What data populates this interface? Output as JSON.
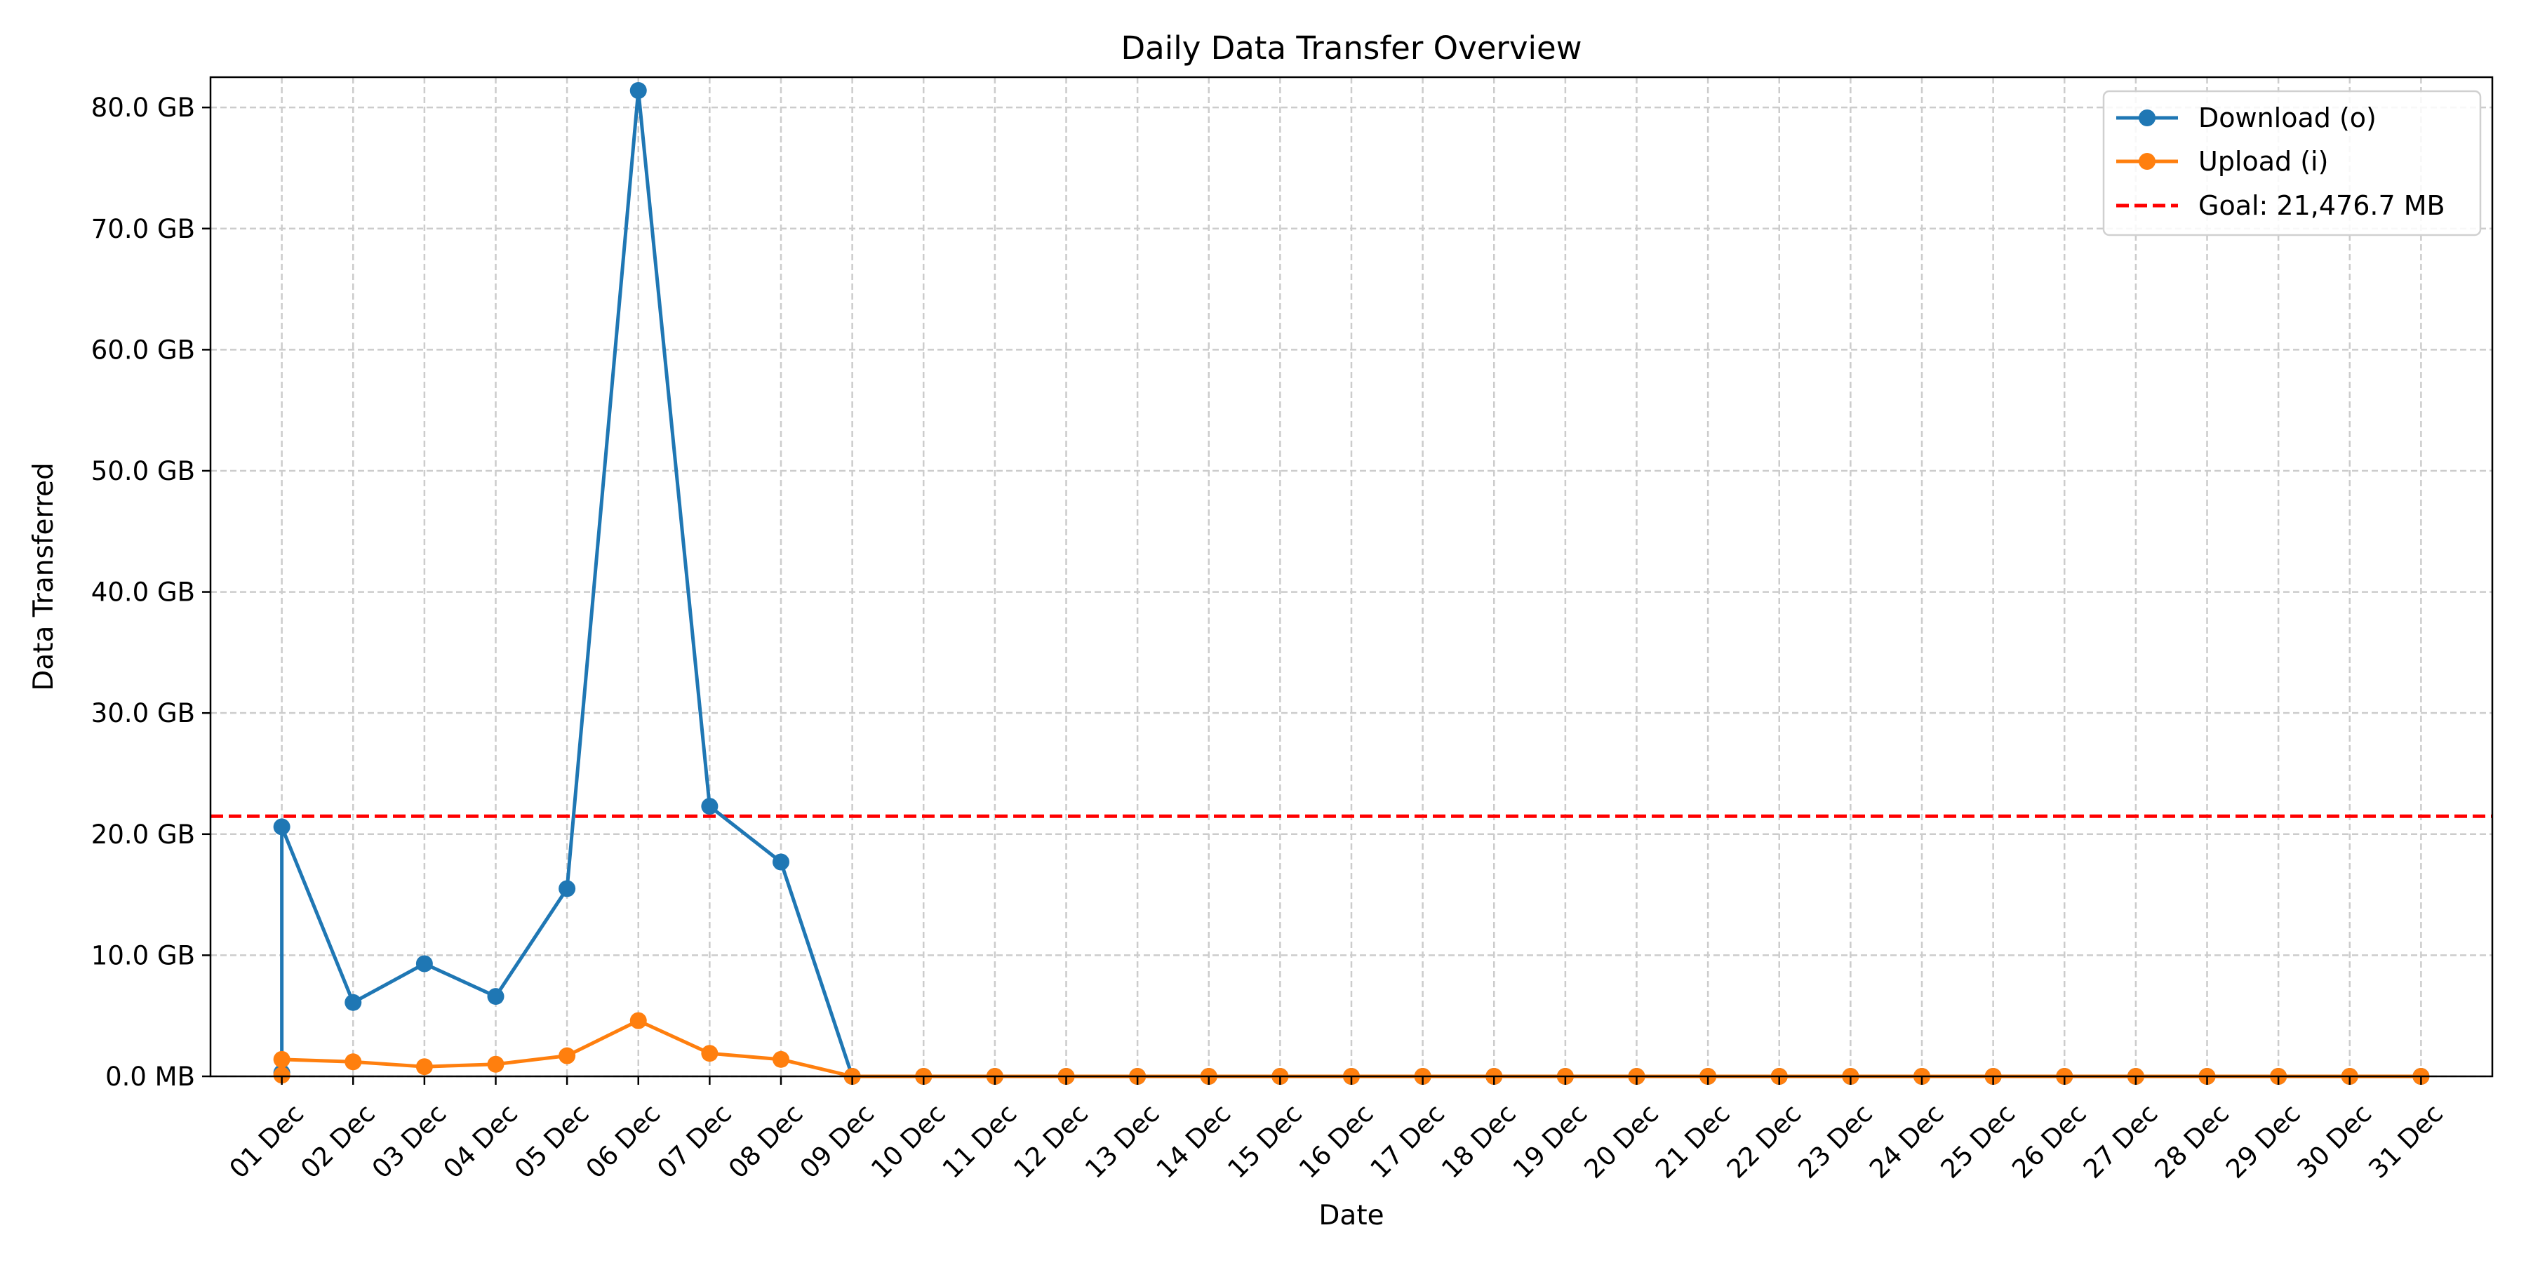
{
  "chart_data": {
    "type": "line",
    "title": "Daily Data Transfer Overview",
    "xlabel": "Date",
    "ylabel": "Data Transferred",
    "x": [
      "01 Dec",
      "02 Dec",
      "03 Dec",
      "04 Dec",
      "05 Dec",
      "06 Dec",
      "07 Dec",
      "08 Dec",
      "09 Dec",
      "10 Dec",
      "11 Dec",
      "12 Dec",
      "13 Dec",
      "14 Dec",
      "15 Dec",
      "16 Dec",
      "17 Dec",
      "18 Dec",
      "19 Dec",
      "20 Dec",
      "21 Dec",
      "22 Dec",
      "23 Dec",
      "24 Dec",
      "25 Dec",
      "26 Dec",
      "27 Dec",
      "28 Dec",
      "29 Dec",
      "30 Dec",
      "31 Dec"
    ],
    "y_unit": "GB",
    "ylim": [
      0,
      82.5
    ],
    "xlim": [
      "30 Nov",
      "01 Jan"
    ],
    "yticks": [
      {
        "value": 0,
        "label": "0.0 MB"
      },
      {
        "value": 10,
        "label": "10.0 GB"
      },
      {
        "value": 20,
        "label": "20.0 GB"
      },
      {
        "value": 30,
        "label": "30.0 GB"
      },
      {
        "value": 40,
        "label": "40.0 GB"
      },
      {
        "value": 50,
        "label": "50.0 GB"
      },
      {
        "value": 60,
        "label": "60.0 GB"
      },
      {
        "value": 70,
        "label": "70.0 GB"
      },
      {
        "value": 80,
        "label": "80.0 GB"
      }
    ],
    "series": [
      {
        "name": "Download (o)",
        "color": "#1f77b4",
        "points": [
          {
            "x": "01 Dec",
            "y": 0.3
          },
          {
            "x": "01 Dec",
            "y": 20.6
          },
          {
            "x": "02 Dec",
            "y": 6.1
          },
          {
            "x": "03 Dec",
            "y": 9.3
          },
          {
            "x": "04 Dec",
            "y": 6.6
          },
          {
            "x": "05 Dec",
            "y": 15.5
          },
          {
            "x": "06 Dec",
            "y": 81.4
          },
          {
            "x": "07 Dec",
            "y": 22.3
          },
          {
            "x": "08 Dec",
            "y": 17.7
          },
          {
            "x": "09 Dec",
            "y": 0
          },
          {
            "x": "10 Dec",
            "y": 0
          },
          {
            "x": "11 Dec",
            "y": 0
          },
          {
            "x": "12 Dec",
            "y": 0
          },
          {
            "x": "13 Dec",
            "y": 0
          },
          {
            "x": "14 Dec",
            "y": 0
          },
          {
            "x": "15 Dec",
            "y": 0
          },
          {
            "x": "16 Dec",
            "y": 0
          },
          {
            "x": "17 Dec",
            "y": 0
          },
          {
            "x": "18 Dec",
            "y": 0
          },
          {
            "x": "19 Dec",
            "y": 0
          },
          {
            "x": "20 Dec",
            "y": 0
          },
          {
            "x": "21 Dec",
            "y": 0
          },
          {
            "x": "22 Dec",
            "y": 0
          },
          {
            "x": "23 Dec",
            "y": 0
          },
          {
            "x": "24 Dec",
            "y": 0
          },
          {
            "x": "25 Dec",
            "y": 0
          },
          {
            "x": "26 Dec",
            "y": 0
          },
          {
            "x": "27 Dec",
            "y": 0
          },
          {
            "x": "28 Dec",
            "y": 0
          },
          {
            "x": "29 Dec",
            "y": 0
          },
          {
            "x": "30 Dec",
            "y": 0
          },
          {
            "x": "31 Dec",
            "y": 0
          }
        ]
      },
      {
        "name": "Upload (i)",
        "color": "#ff7f0e",
        "points": [
          {
            "x": "01 Dec",
            "y": 0.1
          },
          {
            "x": "01 Dec",
            "y": 1.4
          },
          {
            "x": "02 Dec",
            "y": 1.2
          },
          {
            "x": "03 Dec",
            "y": 0.8
          },
          {
            "x": "04 Dec",
            "y": 1.0
          },
          {
            "x": "05 Dec",
            "y": 1.7
          },
          {
            "x": "06 Dec",
            "y": 4.6
          },
          {
            "x": "07 Dec",
            "y": 1.9
          },
          {
            "x": "08 Dec",
            "y": 1.4
          },
          {
            "x": "09 Dec",
            "y": 0
          },
          {
            "x": "10 Dec",
            "y": 0
          },
          {
            "x": "11 Dec",
            "y": 0
          },
          {
            "x": "12 Dec",
            "y": 0
          },
          {
            "x": "13 Dec",
            "y": 0
          },
          {
            "x": "14 Dec",
            "y": 0
          },
          {
            "x": "15 Dec",
            "y": 0
          },
          {
            "x": "16 Dec",
            "y": 0
          },
          {
            "x": "17 Dec",
            "y": 0
          },
          {
            "x": "18 Dec",
            "y": 0
          },
          {
            "x": "19 Dec",
            "y": 0
          },
          {
            "x": "20 Dec",
            "y": 0
          },
          {
            "x": "21 Dec",
            "y": 0
          },
          {
            "x": "22 Dec",
            "y": 0
          },
          {
            "x": "23 Dec",
            "y": 0
          },
          {
            "x": "24 Dec",
            "y": 0
          },
          {
            "x": "25 Dec",
            "y": 0
          },
          {
            "x": "26 Dec",
            "y": 0
          },
          {
            "x": "27 Dec",
            "y": 0
          },
          {
            "x": "28 Dec",
            "y": 0
          },
          {
            "x": "29 Dec",
            "y": 0
          },
          {
            "x": "30 Dec",
            "y": 0
          },
          {
            "x": "31 Dec",
            "y": 0
          }
        ]
      }
    ],
    "goal": {
      "name": "Goal: 21,476.7 MB",
      "value": 21.4767,
      "color": "#ff0000",
      "style": "dashed"
    },
    "grid": true,
    "legend": "top-right"
  }
}
